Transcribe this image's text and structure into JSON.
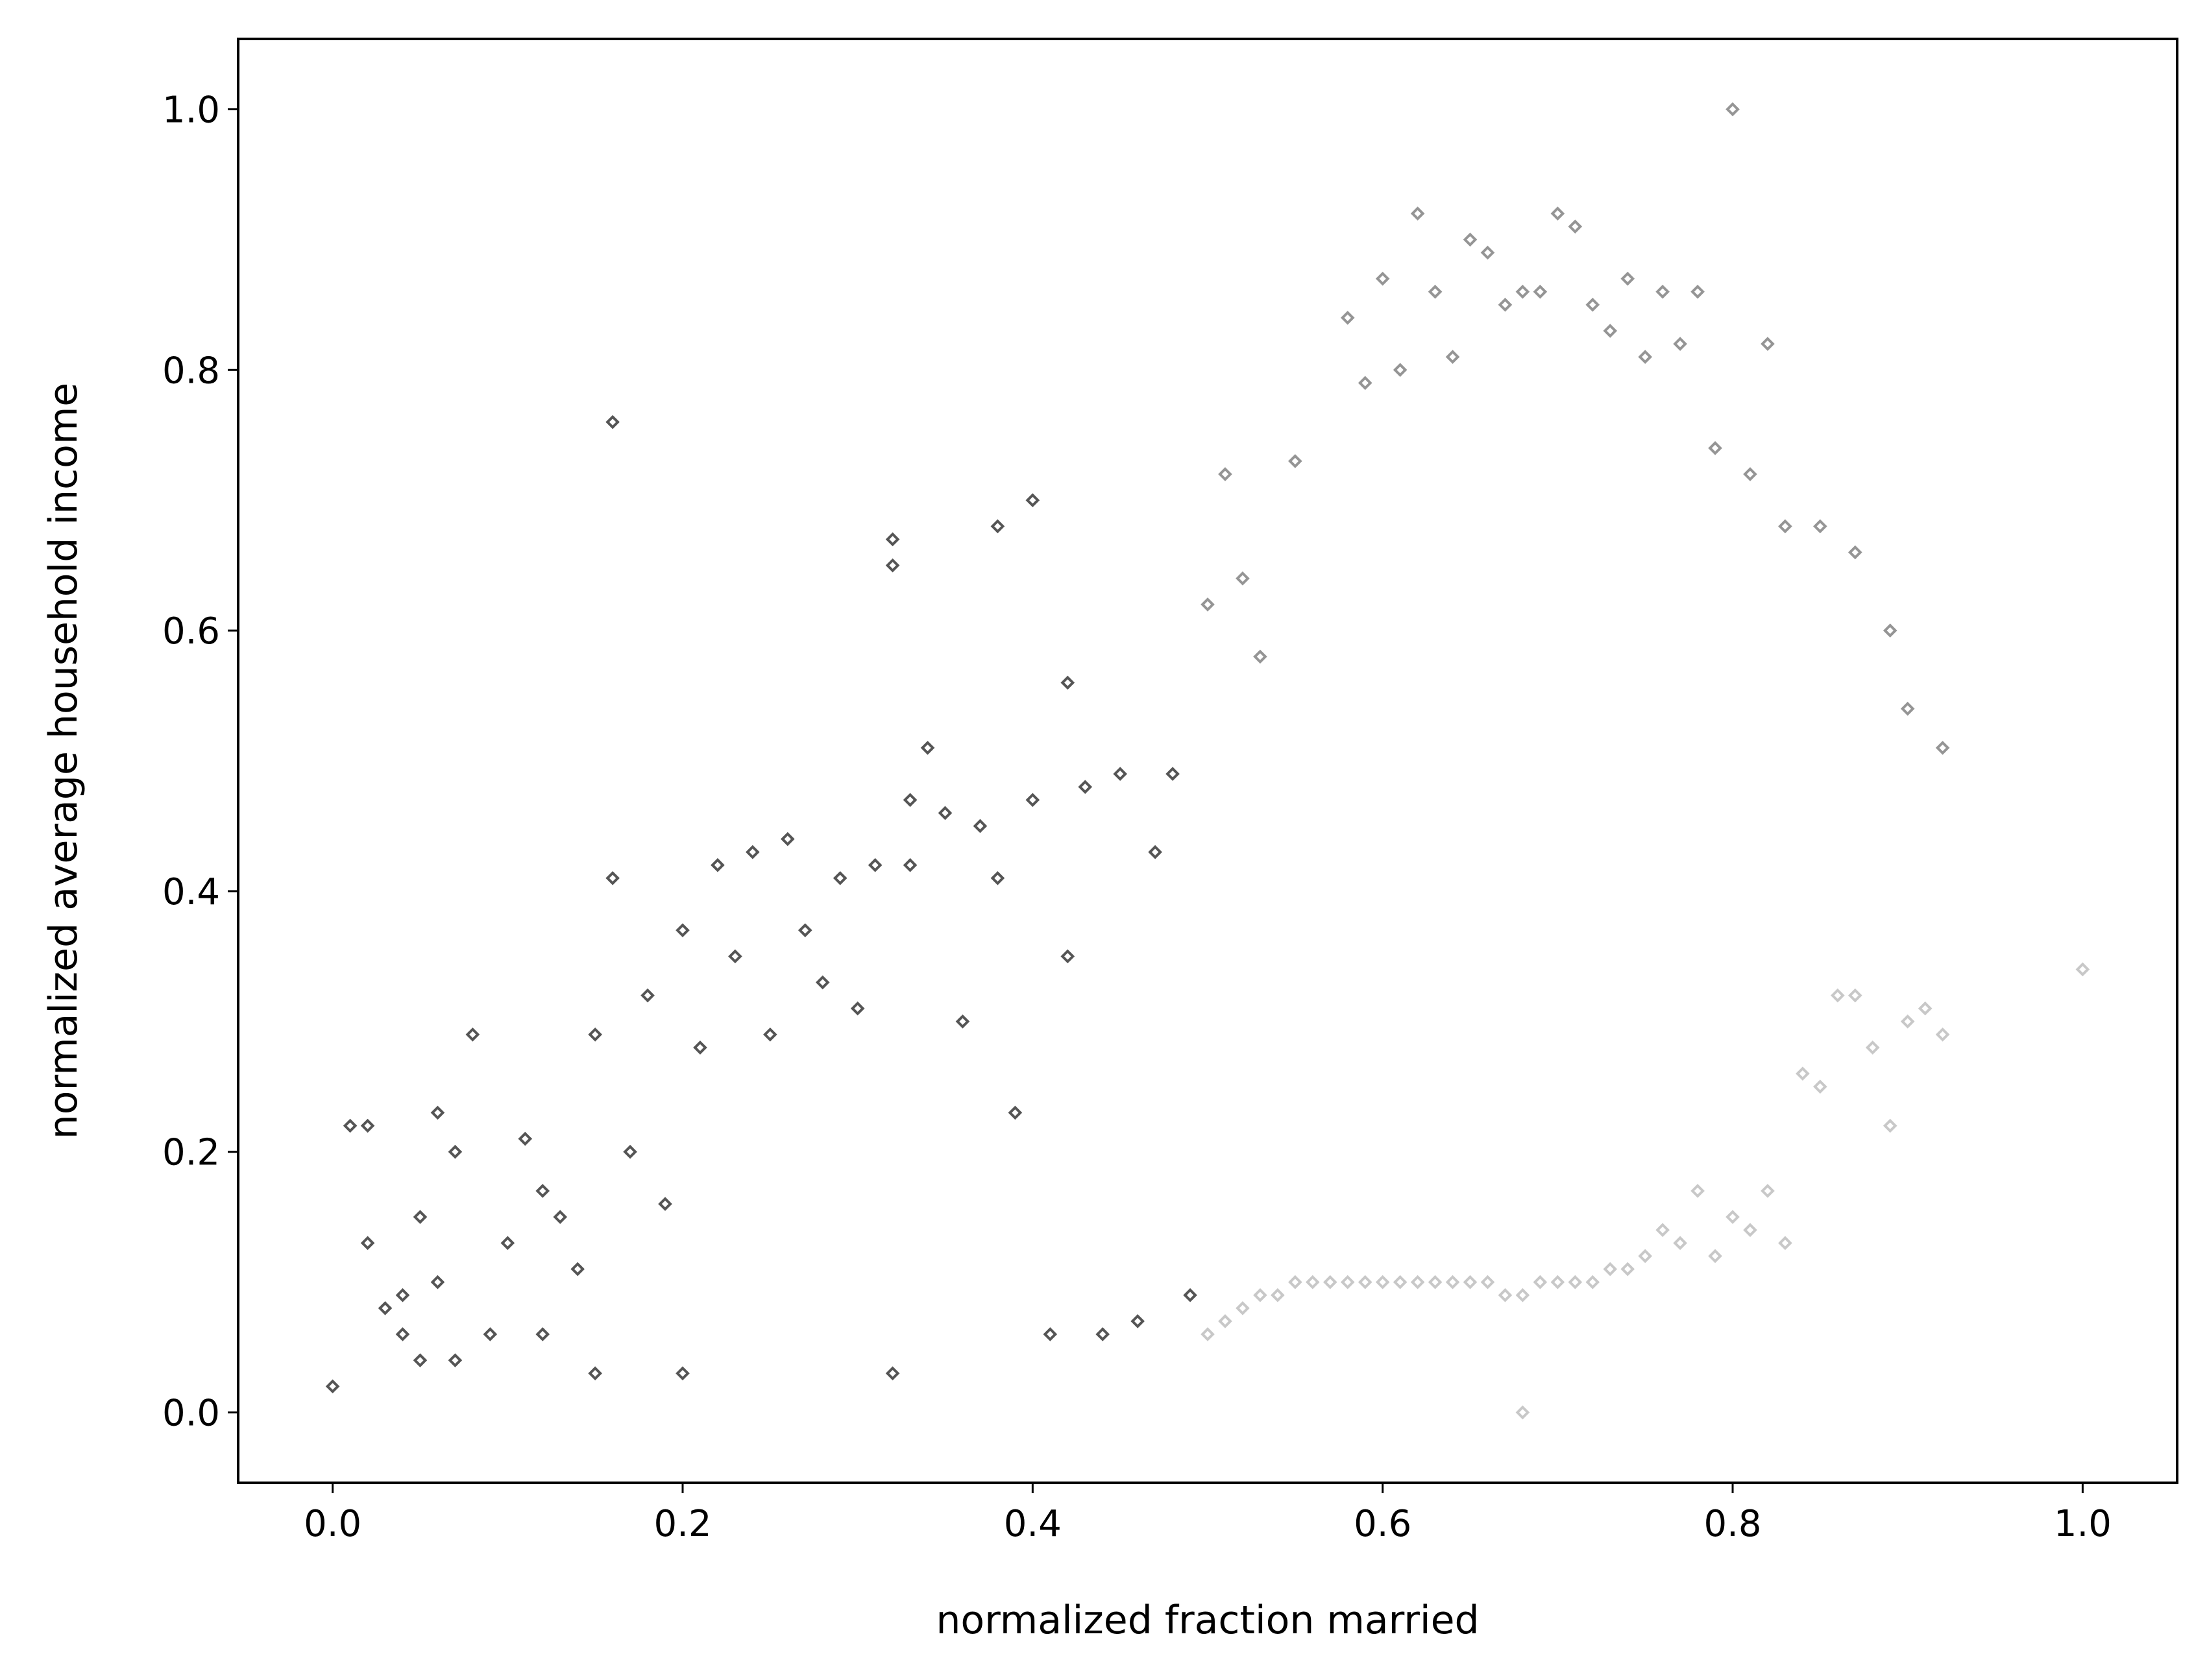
{
  "chart_data": {
    "type": "scatter",
    "title": "",
    "xlabel": "normalized fraction married",
    "ylabel": "normalized average household income",
    "xlim": [
      -0.054,
      1.054
    ],
    "ylim": [
      -0.054,
      1.054
    ],
    "xticks": [
      0.0,
      0.2,
      0.4,
      0.6,
      0.8,
      1.0
    ],
    "yticks": [
      0.0,
      0.2,
      0.4,
      0.6,
      0.8,
      1.0
    ],
    "xtick_labels": [
      "0.0",
      "0.2",
      "0.4",
      "0.6",
      "0.8",
      "1.0"
    ],
    "ytick_labels": [
      "0.0",
      "0.2",
      "0.4",
      "0.6",
      "0.8",
      "1.0"
    ],
    "grid": false,
    "legend": "none",
    "colors": {
      "x_below_0_5": "#555555",
      "x_above_0_5_y_below_0_5": "#c8c8c8",
      "x_above_0_5_y_above_0_5": "#959595"
    },
    "series": [
      {
        "x": [
          0.0,
          0.01,
          0.02,
          0.02,
          0.03,
          0.04,
          0.04,
          0.05,
          0.05,
          0.06,
          0.06,
          0.07,
          0.07,
          0.08,
          0.09,
          0.1,
          0.11,
          0.12,
          0.12,
          0.13,
          0.14,
          0.15,
          0.15,
          0.16,
          0.16,
          0.17,
          0.18,
          0.19,
          0.2,
          0.2,
          0.21,
          0.22,
          0.23,
          0.24,
          0.25,
          0.26,
          0.27,
          0.28,
          0.29,
          0.3,
          0.31,
          0.32,
          0.33,
          0.33,
          0.35,
          0.36,
          0.37,
          0.38,
          0.39,
          0.4,
          0.41,
          0.42,
          0.43,
          0.44,
          0.45,
          0.46,
          0.47,
          0.48,
          0.49
        ],
        "y": [
          0.02,
          0.22,
          0.22,
          0.13,
          0.08,
          0.06,
          0.09,
          0.15,
          0.04,
          0.23,
          0.1,
          0.04,
          0.2,
          0.29,
          0.06,
          0.13,
          0.21,
          0.06,
          0.17,
          0.15,
          0.11,
          0.03,
          0.29,
          0.41,
          0.76,
          0.2,
          0.32,
          0.16,
          0.03,
          0.37,
          0.28,
          0.42,
          0.35,
          0.43,
          0.29,
          0.44,
          0.37,
          0.33,
          0.41,
          0.31,
          0.42,
          0.03,
          0.47,
          0.42,
          0.46,
          0.3,
          0.45,
          0.41,
          0.23,
          0.47,
          0.06,
          0.35,
          0.48,
          0.06,
          0.49,
          0.07,
          0.43,
          0.49,
          0.09
        ]
      },
      {
        "x": [
          0.5,
          0.51,
          0.52,
          0.53,
          0.54,
          0.55,
          0.56,
          0.57,
          0.58,
          0.59,
          0.6,
          0.61,
          0.62,
          0.63,
          0.64,
          0.65,
          0.66,
          0.67,
          0.68,
          0.69,
          0.7,
          0.71,
          0.72,
          0.73,
          0.74,
          0.75,
          0.76,
          0.77,
          0.78,
          0.79,
          0.8,
          0.81,
          0.82,
          0.83,
          0.84,
          0.85,
          0.86,
          0.87,
          0.88,
          0.89,
          0.9,
          0.91,
          0.92,
          1.0,
          0.68
        ],
        "y": [
          0.06,
          0.07,
          0.08,
          0.09,
          0.09,
          0.1,
          0.1,
          0.1,
          0.1,
          0.1,
          0.1,
          0.1,
          0.1,
          0.1,
          0.1,
          0.1,
          0.1,
          0.09,
          0.09,
          0.1,
          0.1,
          0.1,
          0.1,
          0.11,
          0.11,
          0.12,
          0.14,
          0.13,
          0.17,
          0.12,
          0.15,
          0.14,
          0.17,
          0.13,
          0.26,
          0.25,
          0.32,
          0.32,
          0.28,
          0.22,
          0.3,
          0.31,
          0.29,
          0.34,
          0.0
        ]
      },
      {
        "x": [
          0.32,
          0.32,
          0.34,
          0.38,
          0.4,
          0.42,
          0.5,
          0.51,
          0.52,
          0.53,
          0.55,
          0.58,
          0.59,
          0.6,
          0.61,
          0.62,
          0.63,
          0.64,
          0.65,
          0.66,
          0.67,
          0.68,
          0.69,
          0.7,
          0.71,
          0.72,
          0.73,
          0.74,
          0.75,
          0.76,
          0.77,
          0.78,
          0.79,
          0.8,
          0.81,
          0.82,
          0.83,
          0.85,
          0.87,
          0.89,
          0.9,
          0.92
        ],
        "y": [
          0.67,
          0.65,
          0.51,
          0.68,
          0.7,
          0.56,
          0.62,
          0.72,
          0.64,
          0.58,
          0.73,
          0.84,
          0.79,
          0.87,
          0.8,
          0.92,
          0.86,
          0.81,
          0.9,
          0.89,
          0.85,
          0.86,
          0.86,
          0.92,
          0.91,
          0.85,
          0.83,
          0.87,
          0.81,
          0.86,
          0.82,
          0.86,
          0.74,
          1.0,
          0.72,
          0.82,
          0.68,
          0.68,
          0.66,
          0.6,
          0.54,
          0.51
        ]
      }
    ]
  }
}
